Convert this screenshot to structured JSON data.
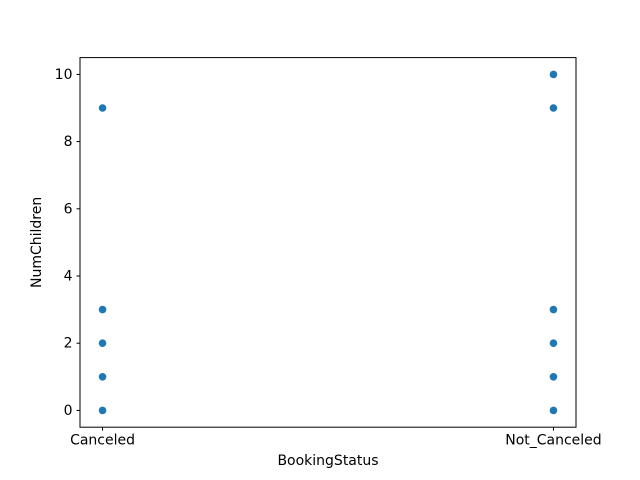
{
  "figure": {
    "background_color": "#ffffff",
    "axes_edge_color": "#000000",
    "tick_color": "#000000",
    "text_color": "#000000"
  },
  "chart_data": {
    "type": "scatter",
    "title": "",
    "xlabel": "BookingStatus",
    "ylabel": "NumChildren",
    "categories": [
      "Canceled",
      "Not_Canceled"
    ],
    "series": [
      {
        "name": "Canceled",
        "x": 0,
        "values": [
          0,
          1,
          2,
          3,
          9
        ]
      },
      {
        "name": "Not_Canceled",
        "x": 1,
        "values": [
          0,
          1,
          2,
          3,
          9,
          10
        ]
      }
    ],
    "yticks": [
      0,
      2,
      4,
      6,
      8,
      10
    ],
    "xlim": [
      -0.05,
      1.05
    ],
    "ylim": [
      -0.5,
      10.5
    ],
    "grid": false,
    "legend": "none",
    "marker_color": "#1f77b4"
  }
}
